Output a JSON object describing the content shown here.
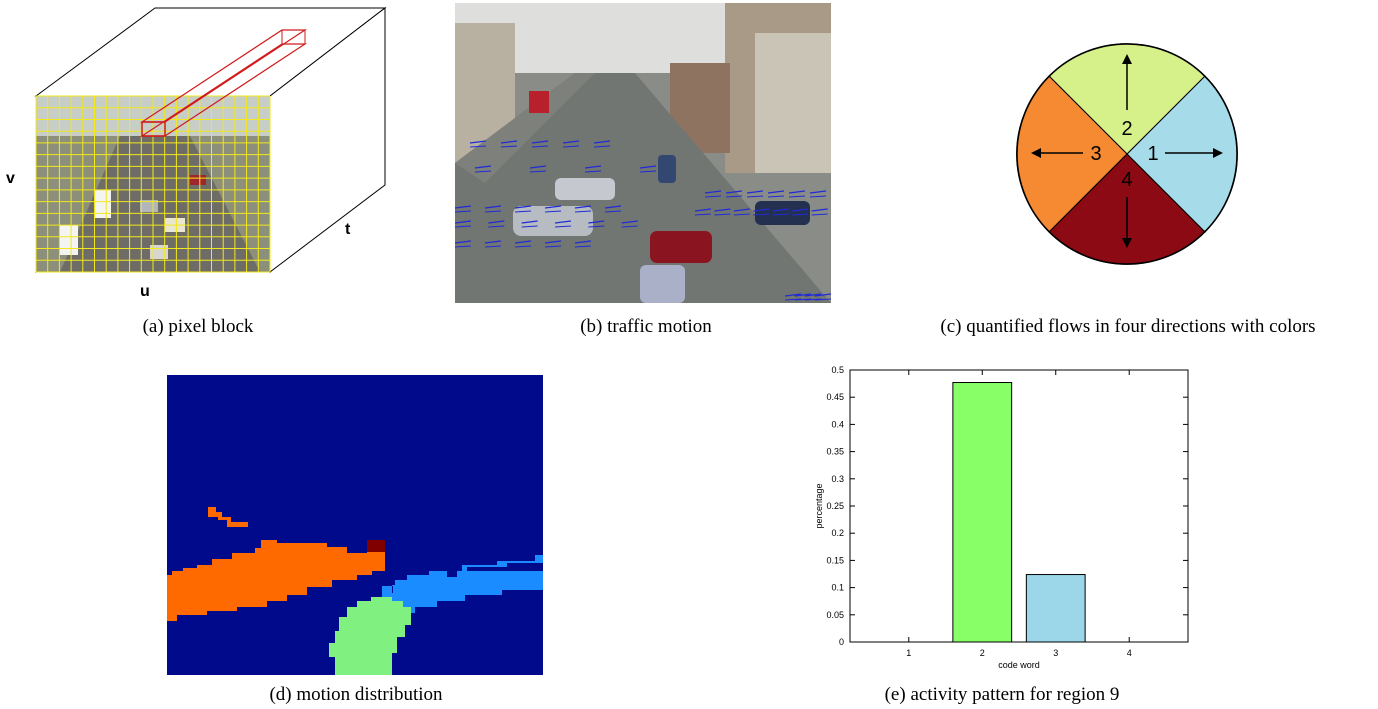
{
  "panels": {
    "a": {
      "caption": "(a) pixel block",
      "axis_v": "v",
      "axis_u": "u",
      "axis_t": "t"
    },
    "b": {
      "caption": "(b) traffic motion"
    },
    "c": {
      "caption": "(c) quantified flows in four directions with colors",
      "sectors": [
        {
          "label": "1",
          "color": "#a6dce9"
        },
        {
          "label": "2",
          "color": "#d6f08a"
        },
        {
          "label": "3",
          "color": "#f58a32"
        },
        {
          "label": "4",
          "color": "#8b0a14"
        }
      ]
    },
    "d": {
      "caption": "(d) motion distribution",
      "background": "#000a8a",
      "colors": {
        "orange": "#ff6a00",
        "blue": "#1a8cff",
        "green": "#80f080",
        "darkred": "#800000"
      }
    },
    "e": {
      "caption": "(e) activity pattern for region 9"
    }
  },
  "chart_data": {
    "type": "bar",
    "categories": [
      "1",
      "2",
      "3",
      "4"
    ],
    "values": [
      0,
      0.477,
      0.124,
      0
    ],
    "colors": [
      "#88ff66",
      "#88ff66",
      "#9bd7e8",
      "#88ff66"
    ],
    "xlabel": "code word",
    "ylabel": "percentage",
    "ylim": [
      0,
      0.5
    ],
    "yticks": [
      "0",
      "0.05",
      "0.1",
      "0.15",
      "0.2",
      "0.25",
      "0.3",
      "0.35",
      "0.4",
      "0.45",
      "0.5"
    ],
    "title": "",
    "grid": false
  }
}
